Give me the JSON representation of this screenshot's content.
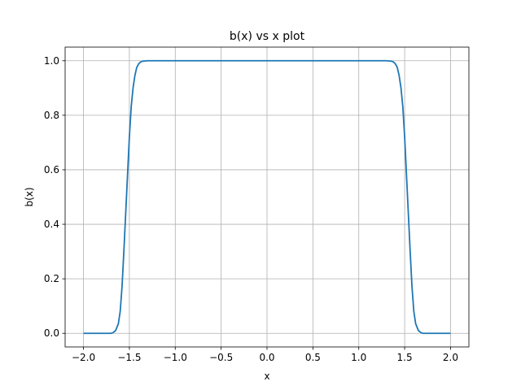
{
  "chart_data": {
    "type": "line",
    "title": "b(x) vs x plot",
    "xlabel": "x",
    "ylabel": "b(x)",
    "xlim": [
      -2.2,
      2.2
    ],
    "ylim": [
      -0.05,
      1.05
    ],
    "xticks": [
      -2.0,
      -1.5,
      -1.0,
      -0.5,
      0.0,
      0.5,
      1.0,
      1.5,
      2.0
    ],
    "xtick_labels": [
      "−2.0",
      "−1.5",
      "−1.0",
      "−0.5",
      "0.0",
      "0.5",
      "1.0",
      "1.5",
      "2.0"
    ],
    "yticks": [
      0.0,
      0.2,
      0.4,
      0.6,
      0.8,
      1.0
    ],
    "ytick_labels": [
      "0.0",
      "0.2",
      "0.4",
      "0.6",
      "0.8",
      "1.0"
    ],
    "grid": true,
    "series": [
      {
        "color": "#1f77b4",
        "x": [
          -2.0,
          -1.8,
          -1.7,
          -1.68,
          -1.65,
          -1.62,
          -1.6,
          -1.58,
          -1.56,
          -1.54,
          -1.52,
          -1.5,
          -1.48,
          -1.46,
          -1.44,
          -1.42,
          -1.4,
          -1.38,
          -1.36,
          -1.34,
          -1.3,
          -1.2,
          -1.0,
          0.0,
          1.0,
          1.2,
          1.3,
          1.34,
          1.36,
          1.38,
          1.4,
          1.42,
          1.44,
          1.46,
          1.48,
          1.5,
          1.52,
          1.54,
          1.56,
          1.58,
          1.6,
          1.62,
          1.65,
          1.68,
          1.7,
          1.8,
          2.0
        ],
        "y": [
          0.0,
          0.0,
          0.0,
          0.002,
          0.01,
          0.035,
          0.08,
          0.17,
          0.3,
          0.44,
          0.58,
          0.72,
          0.83,
          0.9,
          0.945,
          0.975,
          0.988,
          0.995,
          0.998,
          0.999,
          1.0,
          1.0,
          1.0,
          1.0,
          1.0,
          1.0,
          1.0,
          0.999,
          0.998,
          0.995,
          0.988,
          0.975,
          0.945,
          0.9,
          0.83,
          0.72,
          0.58,
          0.44,
          0.3,
          0.17,
          0.08,
          0.035,
          0.01,
          0.002,
          0.0,
          0.0,
          0.0
        ]
      }
    ]
  }
}
